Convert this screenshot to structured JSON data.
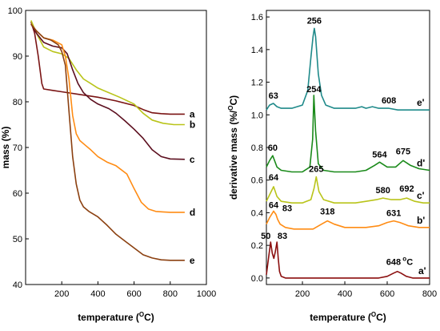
{
  "chart_data": [
    {
      "type": "line",
      "xlabel": "temperature",
      "xlabel_unit_sup": "O",
      "xlabel_unit": "C",
      "ylabel": "mass  (%)",
      "xlim": [
        0,
        1000
      ],
      "ylim": [
        40,
        100
      ],
      "xticks": [
        "200",
        "400",
        "600",
        "800",
        "1000"
      ],
      "yticks": [
        "40",
        "50",
        "60",
        "70",
        "80",
        "90",
        "100"
      ],
      "grid": false,
      "series": [
        {
          "name": "a",
          "color": "#7a1414",
          "x": [
            30,
            50,
            70,
            90,
            100,
            150,
            200,
            300,
            400,
            500,
            600,
            650,
            700,
            750,
            800,
            880
          ],
          "y": [
            97.5,
            95,
            90,
            84,
            82.8,
            82.5,
            82.2,
            81.6,
            81,
            80.2,
            79.2,
            78.3,
            77.6,
            77.4,
            77.3,
            77.3
          ]
        },
        {
          "name": "b",
          "color": "#b9c41a",
          "x": [
            30,
            60,
            100,
            150,
            200,
            240,
            280,
            320,
            360,
            400,
            460,
            520,
            600,
            650,
            700,
            760,
            820,
            880
          ],
          "y": [
            97.8,
            95,
            92,
            91,
            90.5,
            89.5,
            87,
            85,
            84,
            83,
            82,
            81,
            79.5,
            77.5,
            76,
            75.3,
            75,
            75
          ]
        },
        {
          "name": "c",
          "color": "#5c0f1f",
          "x": [
            30,
            60,
            100,
            150,
            200,
            230,
            260,
            290,
            320,
            360,
            400,
            460,
            500,
            550,
            600,
            650,
            700,
            750,
            800,
            880
          ],
          "y": [
            97,
            95,
            93,
            92.2,
            91.8,
            90.5,
            87,
            84,
            82,
            80.5,
            79.5,
            78.5,
            77.5,
            75.8,
            74,
            72,
            69.5,
            68,
            67.5,
            67.4
          ]
        },
        {
          "name": "d",
          "color": "#ff8c14",
          "x": [
            30,
            60,
            100,
            150,
            200,
            220,
            240,
            260,
            280,
            300,
            330,
            360,
            400,
            450,
            500,
            560,
            600,
            640,
            680,
            720,
            760,
            800,
            880
          ],
          "y": [
            97,
            95.5,
            94,
            93.5,
            92.5,
            90,
            85,
            77,
            73,
            71.5,
            70.5,
            69.5,
            68,
            66.8,
            66,
            64.2,
            61,
            58,
            56.5,
            56,
            55.9,
            55.8,
            55.8
          ]
        },
        {
          "name": "e",
          "color": "#8b4010",
          "x": [
            30,
            60,
            100,
            140,
            180,
            200,
            220,
            240,
            260,
            280,
            300,
            320,
            350,
            400,
            450,
            500,
            550,
            600,
            650,
            700,
            750,
            800,
            880
          ],
          "y": [
            97,
            95.5,
            94,
            93.5,
            92.5,
            91,
            88,
            78,
            68,
            62,
            58.5,
            57,
            56,
            54.8,
            53,
            51,
            49.5,
            48,
            46.5,
            45.8,
            45.4,
            45.3,
            45.3
          ]
        }
      ]
    },
    {
      "type": "line",
      "xlabel": "temperature",
      "xlabel_unit_sup": "O",
      "xlabel_unit": "C",
      "ylabel": "derivative mass  (%/",
      "ylabel_sup": "O",
      "ylabel_end": "C)",
      "xlim": [
        30,
        800
      ],
      "ylim": [
        -0.04,
        1.64
      ],
      "xticks": [
        "200",
        "400",
        "600",
        "800"
      ],
      "yticks": [
        "0.0",
        "0.2",
        "0.4",
        "0.6",
        "0.8",
        "1.0",
        "1.2",
        "1.4",
        "1.6"
      ],
      "grid": false,
      "series": [
        {
          "name": "a'",
          "color": "#8b0f0f",
          "x": [
            30,
            40,
            50,
            58,
            65,
            72,
            80,
            86,
            92,
            100,
            120,
            200,
            300,
            400,
            500,
            560,
            600,
            630,
            648,
            665,
            690,
            720,
            760,
            800
          ],
          "y": [
            0.02,
            0.12,
            0.22,
            0.15,
            0.12,
            0.16,
            0.22,
            0.12,
            0.04,
            0.01,
            0.0,
            0.0,
            0.0,
            0.0,
            0.0,
            0.0,
            0.01,
            0.03,
            0.04,
            0.03,
            0.01,
            0.0,
            0.0,
            0.0
          ]
        },
        {
          "name": "b'",
          "color": "#ff8c14",
          "x": [
            30,
            45,
            64,
            75,
            83,
            95,
            120,
            160,
            200,
            250,
            290,
            318,
            350,
            400,
            450,
            500,
            560,
            600,
            631,
            660,
            700,
            750,
            800
          ],
          "y": [
            0.33,
            0.37,
            0.41,
            0.39,
            0.36,
            0.33,
            0.31,
            0.3,
            0.3,
            0.3,
            0.33,
            0.35,
            0.33,
            0.31,
            0.31,
            0.31,
            0.32,
            0.34,
            0.35,
            0.34,
            0.32,
            0.31,
            0.31
          ]
        },
        {
          "name": "c'",
          "color": "#b9c41a",
          "x": [
            30,
            45,
            64,
            80,
            100,
            150,
            200,
            240,
            255,
            265,
            278,
            300,
            350,
            400,
            450,
            500,
            550,
            580,
            620,
            660,
            692,
            730,
            770,
            800
          ],
          "y": [
            0.47,
            0.51,
            0.56,
            0.5,
            0.47,
            0.46,
            0.46,
            0.48,
            0.55,
            0.62,
            0.53,
            0.48,
            0.46,
            0.46,
            0.46,
            0.47,
            0.48,
            0.49,
            0.48,
            0.48,
            0.49,
            0.47,
            0.46,
            0.46
          ]
        },
        {
          "name": "d'",
          "color": "#1a8a1a",
          "x": [
            30,
            45,
            60,
            80,
            100,
            150,
            200,
            235,
            248,
            254,
            262,
            275,
            300,
            350,
            400,
            450,
            500,
            540,
            564,
            600,
            640,
            675,
            710,
            750,
            800
          ],
          "y": [
            0.68,
            0.72,
            0.75,
            0.68,
            0.66,
            0.65,
            0.65,
            0.68,
            0.85,
            1.12,
            0.9,
            0.7,
            0.66,
            0.65,
            0.65,
            0.65,
            0.66,
            0.69,
            0.71,
            0.68,
            0.68,
            0.72,
            0.69,
            0.67,
            0.66
          ]
        },
        {
          "name": "e'",
          "color": "#1f8a8a",
          "x": [
            30,
            45,
            63,
            80,
            100,
            150,
            200,
            225,
            240,
            250,
            256,
            262,
            275,
            290,
            310,
            350,
            400,
            450,
            480,
            500,
            530,
            560,
            608,
            650,
            700,
            750,
            800
          ],
          "y": [
            1.03,
            1.06,
            1.07,
            1.05,
            1.04,
            1.04,
            1.06,
            1.15,
            1.35,
            1.48,
            1.53,
            1.48,
            1.25,
            1.12,
            1.06,
            1.04,
            1.04,
            1.04,
            1.05,
            1.04,
            1.05,
            1.04,
            1.04,
            1.03,
            1.03,
            1.03,
            1.03
          ]
        }
      ],
      "peak_labels": [
        {
          "text": "256",
          "x": 256,
          "y": 1.53
        },
        {
          "text": "63",
          "x": 63,
          "y": 1.07
        },
        {
          "text": "608",
          "x": 608,
          "y": 1.04
        },
        {
          "text": "254",
          "x": 254,
          "y": 1.12
        },
        {
          "text": "60",
          "x": 60,
          "y": 0.75
        },
        {
          "text": "564",
          "x": 564,
          "y": 0.71
        },
        {
          "text": "675",
          "x": 675,
          "y": 0.72
        },
        {
          "text": "265",
          "x": 265,
          "y": 0.62
        },
        {
          "text": "64",
          "x": 64,
          "y": 0.56
        },
        {
          "text": "580",
          "x": 580,
          "y": 0.49
        },
        {
          "text": "692",
          "x": 692,
          "y": 0.49
        },
        {
          "text": "64",
          "x": 64,
          "y": 0.41
        },
        {
          "text": "83",
          "x": 83,
          "y": 0.36
        },
        {
          "text": "318",
          "x": 318,
          "y": 0.35
        },
        {
          "text": "631",
          "x": 631,
          "y": 0.35
        },
        {
          "text": "50",
          "x": 50,
          "y": 0.22
        },
        {
          "text": "83",
          "x": 83,
          "y": 0.22
        },
        {
          "text": "648",
          "x": 648,
          "y": 0.04
        }
      ],
      "peak_unit": "C",
      "peak_unit_sup": "o"
    }
  ]
}
